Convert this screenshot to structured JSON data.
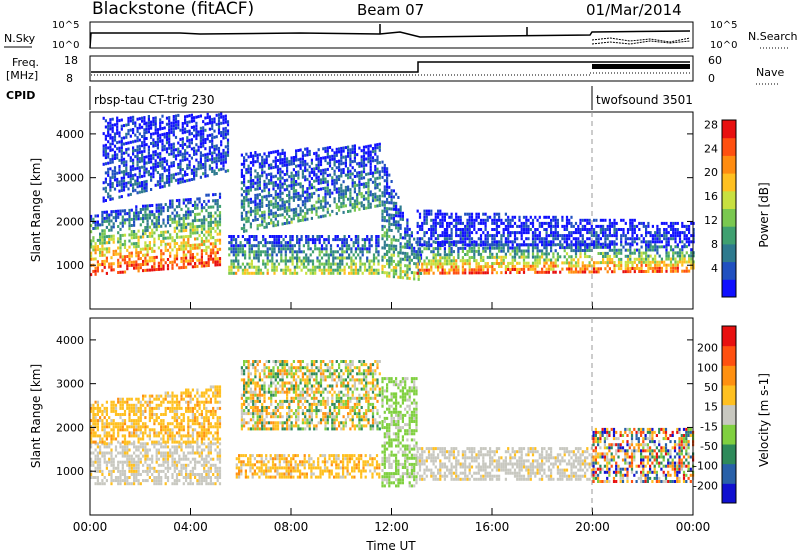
{
  "header": {
    "station": "Blackstone (fitACF)",
    "beam": "Beam 07",
    "date": "01/Mar/2014"
  },
  "strips": {
    "nsky_label": "N.Sky",
    "nsky_ticks": [
      "10^5",
      "10^0"
    ],
    "nsearch_label": "N.Search",
    "nsearch_ticks": [
      "10^5",
      "10^0"
    ],
    "freq_label": "Freq.",
    "freq_unit": "[MHz]",
    "freq_ticks": [
      "18",
      "8"
    ],
    "nave_label": "Nave",
    "nave_ticks": [
      "60",
      "0"
    ],
    "cpid_label": "CPID",
    "cpid_segments": [
      {
        "name": "rbsp-tau CT-trig 230",
        "start_hour": 0
      },
      {
        "name": "twofsound 3501",
        "start_hour": 20
      }
    ]
  },
  "chart_data": [
    {
      "type": "heatmap",
      "panel": "power",
      "x": {
        "label": "Time UT",
        "range_hours": [
          0,
          24
        ],
        "tick_labels": [
          "00:00",
          "04:00",
          "08:00",
          "12:00",
          "16:00",
          "20:00",
          "00:00"
        ]
      },
      "y": {
        "label": "Slant Range [km]",
        "range": [
          0,
          4500
        ],
        "tick_labels": [
          "1000",
          "2000",
          "3000",
          "4000"
        ]
      },
      "colorbar": {
        "label": "Power [dB]",
        "tick_labels": [
          "4",
          "8",
          "12",
          "16",
          "20",
          "24",
          "28"
        ],
        "colors": [
          "#1010ff",
          "#2050c0",
          "#2e7a8e",
          "#3fa070",
          "#7ac850",
          "#c8e040",
          "#ffc020",
          "#ff8c10",
          "#ff5010",
          "#e81010"
        ]
      },
      "bands": [
        {
          "t0": 0.0,
          "t1": 5.2,
          "r0": 820,
          "r1": 2200,
          "level": 0.9,
          "r0_end": 1050,
          "r1_end": 2700
        },
        {
          "t0": 5.5,
          "t1": 11.5,
          "r0": 850,
          "r1": 1700,
          "level": 0.55,
          "r0_end": 850,
          "r1_end": 1700
        },
        {
          "t0": 6.0,
          "t1": 11.5,
          "r0": 1800,
          "r1": 3600,
          "level": 0.35,
          "r0_end": 2400,
          "r1_end": 3800
        },
        {
          "t0": 0.5,
          "t1": 5.5,
          "r0": 2500,
          "r1": 4400,
          "level": 0.15,
          "r0_end": 3200,
          "r1_end": 4500
        },
        {
          "t0": 11.6,
          "t1": 13.2,
          "r0": 800,
          "r1": 3500,
          "level": 0.5,
          "r0_end": 700,
          "r1_end": 1200
        },
        {
          "t0": 13.0,
          "t1": 24.0,
          "r0": 850,
          "r1": 1600,
          "level": 0.85,
          "r0_end": 900,
          "r1_end": 1500
        },
        {
          "t0": 13.0,
          "t1": 24.0,
          "r0": 1500,
          "r1": 2300,
          "level": 0.1,
          "r0_end": 1500,
          "r1_end": 2000
        }
      ]
    },
    {
      "type": "heatmap",
      "panel": "velocity",
      "x": {
        "label": "Time UT",
        "range_hours": [
          0,
          24
        ],
        "tick_labels": [
          "00:00",
          "04:00",
          "08:00",
          "12:00",
          "16:00",
          "20:00",
          "00:00"
        ]
      },
      "y": {
        "label": "Slant Range [km]",
        "range": [
          0,
          4500
        ],
        "tick_labels": [
          "1000",
          "2000",
          "3000",
          "4000"
        ]
      },
      "colorbar": {
        "label": "Velocity [m s-1]",
        "tick_labels": [
          "200",
          "100",
          "50",
          "15",
          "-15",
          "-50",
          "-100",
          "-200"
        ],
        "colors": [
          "#1010d0",
          "#2860a8",
          "#2e8a5a",
          "#80d040",
          "#c8c8c0",
          "#ffc020",
          "#ff9010",
          "#ff5010",
          "#e81010"
        ]
      },
      "bands": [
        {
          "t0": 0.0,
          "t1": 5.2,
          "r0": 750,
          "r1": 1700,
          "kind": "gray"
        },
        {
          "t0": 0.0,
          "t1": 5.2,
          "r0": 1700,
          "r1": 2600,
          "kind": "orange",
          "r1_end": 3000
        },
        {
          "t0": 5.8,
          "t1": 11.5,
          "r0": 900,
          "r1": 1450,
          "kind": "orange"
        },
        {
          "t0": 6.0,
          "t1": 11.5,
          "r0": 2000,
          "r1": 3600,
          "kind": "mixed"
        },
        {
          "t0": 11.6,
          "t1": 13.0,
          "r0": 700,
          "r1": 3200,
          "kind": "green"
        },
        {
          "t0": 13.0,
          "t1": 20.0,
          "r0": 850,
          "r1": 1600,
          "kind": "gray"
        },
        {
          "t0": 20.0,
          "t1": 24.0,
          "r0": 800,
          "r1": 2000,
          "kind": "multi"
        }
      ]
    }
  ]
}
